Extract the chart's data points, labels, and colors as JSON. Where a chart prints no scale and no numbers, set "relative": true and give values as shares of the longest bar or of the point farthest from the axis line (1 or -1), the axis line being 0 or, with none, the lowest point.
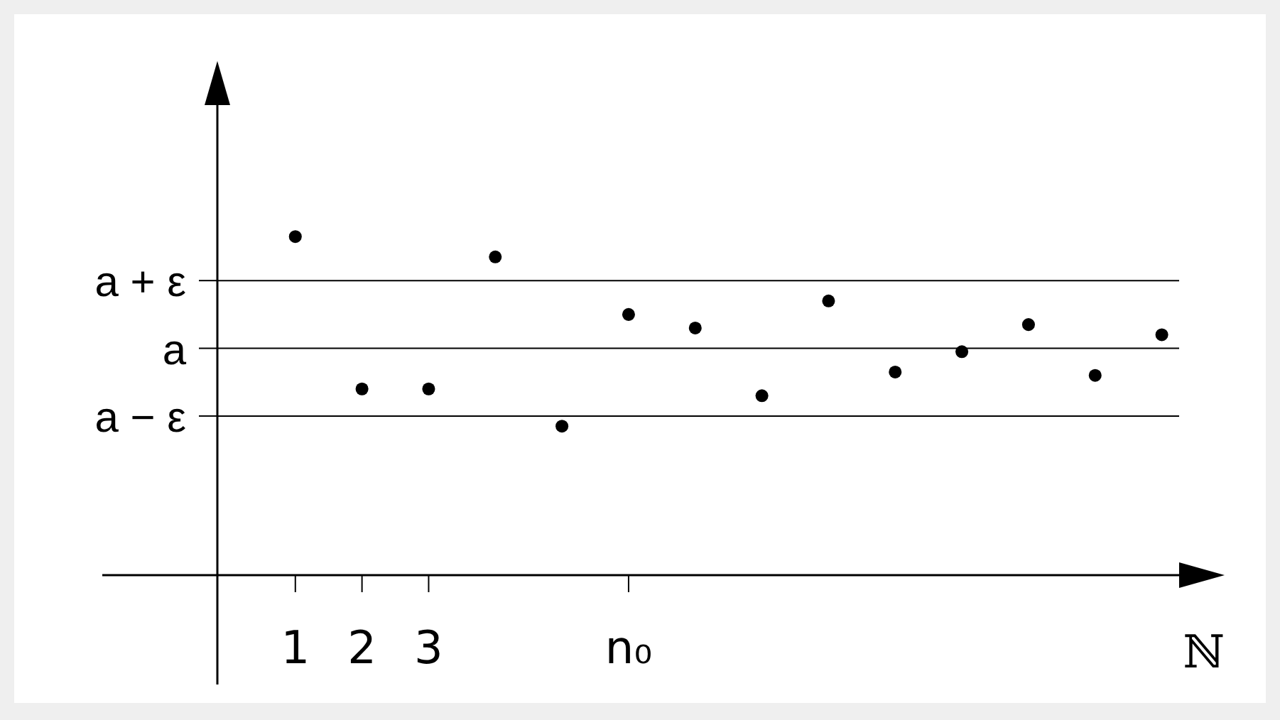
{
  "chart_data": {
    "type": "scatter",
    "relative": true,
    "xlabel": "ℕ",
    "marker": "circle",
    "color": "#000000",
    "categories": [
      "1",
      "2",
      "3",
      null,
      null,
      "n₀",
      null,
      null,
      null,
      null,
      null,
      null,
      null,
      null
    ],
    "values": [
      1.0,
      0.55,
      0.55,
      0.94,
      0.44,
      0.77,
      0.73,
      0.53,
      0.81,
      0.6,
      0.66,
      0.74,
      0.59,
      0.71
    ],
    "ref_lines": [
      {
        "axis": "y",
        "value": 0.87,
        "label": "a + ε",
        "color": "#000000"
      },
      {
        "axis": "y",
        "value": 0.67,
        "label": "a",
        "color": "#000000"
      },
      {
        "axis": "y",
        "value": 0.47,
        "label": "a − ε",
        "color": "#000000"
      }
    ]
  }
}
